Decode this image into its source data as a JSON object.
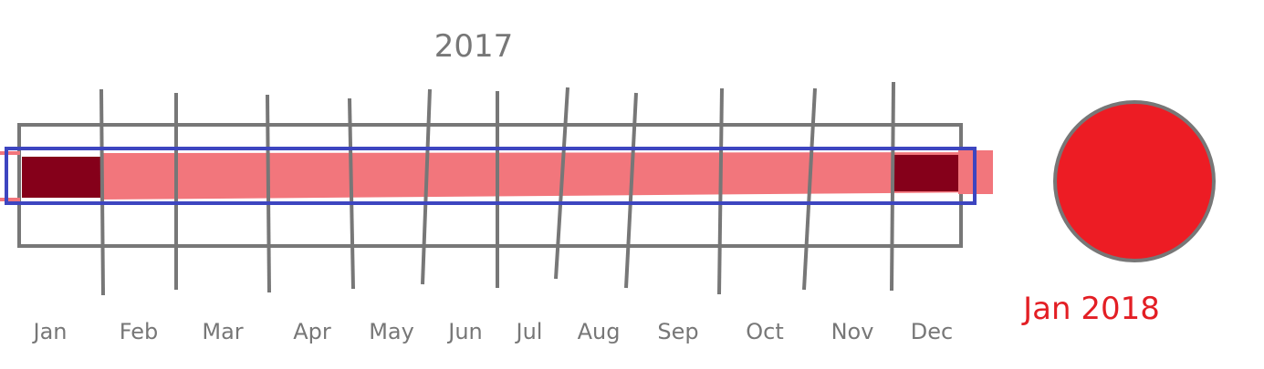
{
  "year_title": "2017",
  "months": [
    "Jan",
    "Feb",
    "Mar",
    "Apr",
    "May",
    "Jun",
    "Jul",
    "Aug",
    "Sep",
    "Oct",
    "Nov",
    "Dec"
  ],
  "next_label": "Jan 2018",
  "colors": {
    "grid": "#777777",
    "range_fill": "#f2767c",
    "range_ends": "#85001a",
    "selection_frame": "#3d45c0",
    "next_circle": "#ed1c24",
    "next_label": "#e31e24"
  }
}
